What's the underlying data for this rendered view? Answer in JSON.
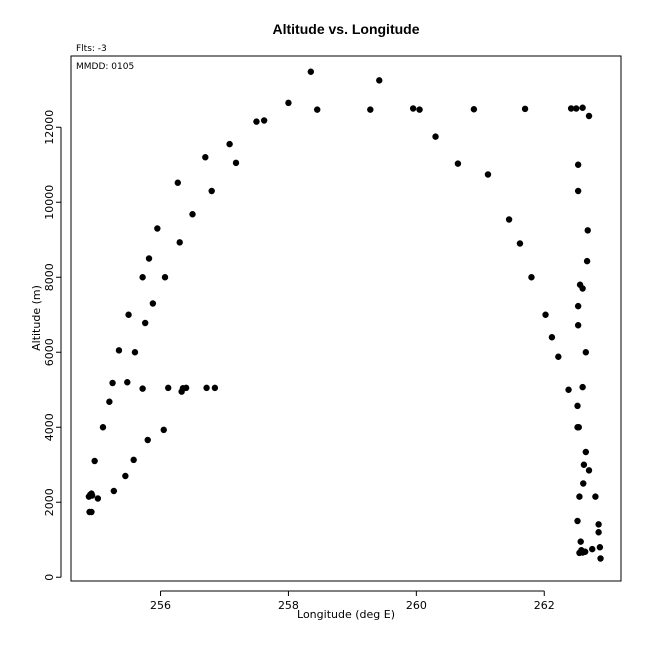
{
  "chart_data": {
    "type": "scatter",
    "title": "Altitude vs. Longitude",
    "xlabel": "Longitude (deg E)",
    "ylabel": "Altitude (m)",
    "xlim": [
      254.6,
      263.2
    ],
    "ylim": [
      -100,
      13900
    ],
    "xticks": [
      256,
      258,
      260,
      262
    ],
    "yticks": [
      0,
      2000,
      4000,
      6000,
      8000,
      10000,
      12000
    ],
    "annotations": [
      "Flts: -3",
      "MMDD: 0105"
    ],
    "grid": false,
    "point_color": "#000000",
    "points": [
      [
        254.88,
        2150
      ],
      [
        254.9,
        2200
      ],
      [
        254.92,
        2230
      ],
      [
        254.93,
        2180
      ],
      [
        254.89,
        1740
      ],
      [
        254.92,
        1740
      ],
      [
        255.02,
        2100
      ],
      [
        254.97,
        3100
      ],
      [
        255.1,
        4000
      ],
      [
        255.2,
        4680
      ],
      [
        255.25,
        5180
      ],
      [
        255.35,
        6050
      ],
      [
        255.27,
        2300
      ],
      [
        255.45,
        2700
      ],
      [
        255.5,
        7000
      ],
      [
        255.48,
        5200
      ],
      [
        255.58,
        3130
      ],
      [
        255.6,
        6000
      ],
      [
        255.72,
        8000
      ],
      [
        255.72,
        5030
      ],
      [
        255.76,
        6780
      ],
      [
        255.8,
        3660
      ],
      [
        255.82,
        8500
      ],
      [
        255.88,
        7300
      ],
      [
        255.95,
        9300
      ],
      [
        256.05,
        3930
      ],
      [
        256.07,
        8000
      ],
      [
        256.12,
        5050
      ],
      [
        256.27,
        10520
      ],
      [
        256.3,
        8930
      ],
      [
        256.33,
        4950
      ],
      [
        256.35,
        5040
      ],
      [
        256.4,
        5050
      ],
      [
        256.5,
        9680
      ],
      [
        256.7,
        11200
      ],
      [
        256.72,
        5050
      ],
      [
        256.8,
        10300
      ],
      [
        256.85,
        5050
      ],
      [
        257.08,
        11550
      ],
      [
        257.18,
        11050
      ],
      [
        257.5,
        12150
      ],
      [
        257.62,
        12180
      ],
      [
        258.0,
        12650
      ],
      [
        258.35,
        13480
      ],
      [
        258.45,
        12470
      ],
      [
        259.28,
        12470
      ],
      [
        259.42,
        13250
      ],
      [
        259.95,
        12500
      ],
      [
        260.05,
        12470
      ],
      [
        260.3,
        11750
      ],
      [
        260.65,
        11030
      ],
      [
        260.9,
        12480
      ],
      [
        261.12,
        10740
      ],
      [
        261.45,
        9540
      ],
      [
        261.62,
        8900
      ],
      [
        261.7,
        12490
      ],
      [
        261.8,
        8000
      ],
      [
        262.02,
        7000
      ],
      [
        262.12,
        6400
      ],
      [
        262.22,
        5880
      ],
      [
        262.38,
        5000
      ],
      [
        262.42,
        12500
      ],
      [
        262.5,
        12500
      ],
      [
        262.53,
        11000
      ],
      [
        262.53,
        10300
      ],
      [
        262.6,
        12520
      ],
      [
        262.7,
        12300
      ],
      [
        262.68,
        9250
      ],
      [
        262.67,
        8430
      ],
      [
        262.53,
        7230
      ],
      [
        262.56,
        7800
      ],
      [
        262.6,
        7700
      ],
      [
        262.53,
        6720
      ],
      [
        262.65,
        6000
      ],
      [
        262.6,
        5070
      ],
      [
        262.52,
        4570
      ],
      [
        262.52,
        4000
      ],
      [
        262.54,
        4000
      ],
      [
        262.65,
        3340
      ],
      [
        262.62,
        3000
      ],
      [
        262.7,
        2850
      ],
      [
        262.61,
        2500
      ],
      [
        262.55,
        2150
      ],
      [
        262.8,
        2150
      ],
      [
        262.52,
        1500
      ],
      [
        262.85,
        1410
      ],
      [
        262.85,
        1200
      ],
      [
        262.57,
        950
      ],
      [
        262.75,
        750
      ],
      [
        262.87,
        800
      ],
      [
        262.58,
        720
      ],
      [
        262.55,
        650
      ],
      [
        262.6,
        660
      ],
      [
        262.64,
        680
      ],
      [
        262.88,
        500
      ]
    ]
  }
}
